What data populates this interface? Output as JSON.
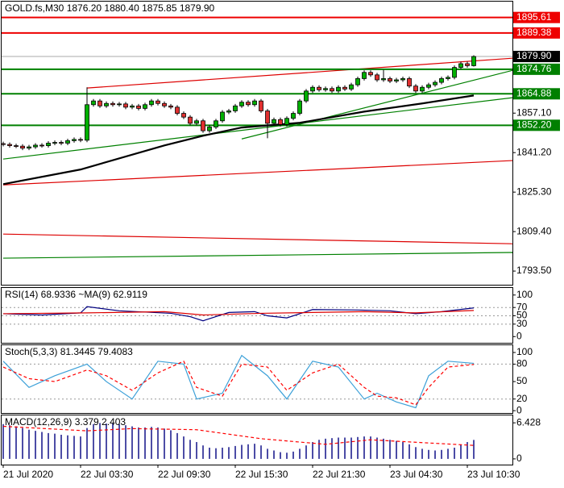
{
  "chart_data": [
    {
      "type": "candlestick",
      "header": "GOLD.fs,M30  1876.20 1880.40 1875.85 1879.90",
      "ylim": [
        1788,
        1902
      ],
      "yticks": [
        {
          "value": 1857.1,
          "label": "1857.10"
        },
        {
          "value": 1841.2,
          "label": "1841.20"
        },
        {
          "value": 1825.3,
          "label": "1825.30"
        },
        {
          "value": 1809.4,
          "label": "1809.40"
        },
        {
          "value": 1793.5,
          "label": "1793.50"
        }
      ],
      "xticks": [
        {
          "value": 0,
          "label": "21 Jul 2020"
        },
        {
          "value": 12,
          "label": "22 Jul 03:30"
        },
        {
          "value": 24,
          "label": "22 Jul 09:30"
        },
        {
          "value": 36,
          "label": "22 Jul 15:30"
        },
        {
          "value": 48,
          "label": "22 Jul 21:30"
        },
        {
          "value": 60,
          "label": "23 Jul 04:30"
        },
        {
          "value": 72,
          "label": "23 Jul 10:30"
        }
      ],
      "up_color": "#00b000",
      "down_color": "#e03030",
      "open": [
        1844.8,
        1844.5,
        1844.0,
        1843.8,
        1843.0,
        1843.5,
        1844.2,
        1844.0,
        1845.0,
        1845.3,
        1845.0,
        1846.0,
        1846.5,
        1846.2,
        1860.5,
        1862.0,
        1860.0,
        1861.0,
        1860.5,
        1860.8,
        1859.5,
        1860.0,
        1859.0,
        1860.5,
        1862.0,
        1861.0,
        1860.0,
        1859.5,
        1857.0,
        1855.5,
        1853.0,
        1854.0,
        1850.0,
        1851.5,
        1854.0,
        1857.5,
        1858.0,
        1860.0,
        1861.5,
        1860.5,
        1862.0,
        1858.0,
        1853.0,
        1854.5,
        1852.5,
        1855.0,
        1857.0,
        1862.0,
        1866.0,
        1867.5,
        1866.5,
        1867.0,
        1866.0,
        1867.5,
        1866.8,
        1868.5,
        1871.0,
        1873.5,
        1872.5,
        1870.5,
        1871.0,
        1870.0,
        1870.5,
        1871.0,
        1868.0,
        1866.0,
        1867.5,
        1868.5,
        1869.5,
        1871.0,
        1871.5,
        1875.5,
        1877.0,
        1876.2
      ],
      "high": [
        1845.6,
        1845.3,
        1844.8,
        1844.6,
        1844.3,
        1845.0,
        1845.0,
        1845.8,
        1846.1,
        1846.1,
        1846.8,
        1847.3,
        1847.3,
        1867.5,
        1862.8,
        1862.8,
        1861.8,
        1861.8,
        1861.6,
        1861.6,
        1860.8,
        1860.8,
        1861.3,
        1862.8,
        1862.8,
        1861.8,
        1860.8,
        1860.3,
        1857.8,
        1856.3,
        1854.8,
        1854.8,
        1852.3,
        1854.8,
        1858.3,
        1858.8,
        1860.8,
        1862.3,
        1862.3,
        1862.8,
        1862.8,
        1858.8,
        1855.3,
        1855.3,
        1855.8,
        1857.8,
        1862.8,
        1866.8,
        1868.3,
        1868.3,
        1867.8,
        1867.8,
        1868.3,
        1868.3,
        1869.3,
        1871.8,
        1874.3,
        1874.3,
        1873.3,
        1874.5,
        1871.8,
        1871.3,
        1871.8,
        1871.8,
        1868.8,
        1868.3,
        1869.3,
        1870.3,
        1871.8,
        1872.3,
        1876.3,
        1877.8,
        1877.8,
        1880.4
      ],
      "low": [
        1843.7,
        1843.2,
        1843.0,
        1842.2,
        1842.2,
        1842.7,
        1843.2,
        1843.2,
        1844.2,
        1844.2,
        1844.2,
        1845.2,
        1845.4,
        1845.4,
        1859.7,
        1859.2,
        1859.2,
        1859.7,
        1859.7,
        1858.7,
        1858.7,
        1858.2,
        1858.2,
        1859.7,
        1860.2,
        1859.2,
        1858.7,
        1856.2,
        1854.7,
        1852.2,
        1852.2,
        1849.2,
        1849.2,
        1850.7,
        1853.2,
        1856.7,
        1857.2,
        1859.2,
        1859.7,
        1859.7,
        1857.2,
        1847.0,
        1852.2,
        1851.7,
        1851.7,
        1854.2,
        1856.2,
        1861.2,
        1865.2,
        1865.7,
        1865.7,
        1865.2,
        1865.2,
        1866.0,
        1866.0,
        1867.7,
        1870.2,
        1871.7,
        1869.7,
        1869.7,
        1869.2,
        1869.2,
        1869.7,
        1867.2,
        1865.2,
        1865.2,
        1866.7,
        1867.7,
        1868.7,
        1870.2,
        1870.7,
        1874.7,
        1875.4,
        1875.85
      ],
      "close": [
        1844.5,
        1844.0,
        1843.8,
        1843.0,
        1843.5,
        1844.2,
        1844.0,
        1845.0,
        1845.3,
        1845.0,
        1846.0,
        1846.5,
        1846.2,
        1860.5,
        1862.0,
        1860.0,
        1861.0,
        1860.5,
        1860.8,
        1859.5,
        1860.0,
        1859.0,
        1860.5,
        1862.0,
        1861.0,
        1860.0,
        1859.5,
        1857.0,
        1855.5,
        1853.0,
        1854.0,
        1850.0,
        1851.5,
        1854.0,
        1857.5,
        1858.0,
        1860.0,
        1861.5,
        1860.5,
        1862.0,
        1858.0,
        1853.0,
        1854.5,
        1852.5,
        1855.0,
        1857.0,
        1862.0,
        1866.0,
        1867.5,
        1866.5,
        1867.0,
        1866.0,
        1867.5,
        1866.8,
        1868.5,
        1871.0,
        1873.5,
        1872.5,
        1870.5,
        1871.0,
        1870.0,
        1870.5,
        1871.0,
        1868.0,
        1866.0,
        1867.5,
        1868.5,
        1869.5,
        1871.0,
        1871.5,
        1875.5,
        1877.0,
        1876.2,
        1879.9
      ],
      "ma": {
        "color": "#000000",
        "x": [
          0,
          12,
          25,
          31,
          37,
          46,
          56,
          65,
          73
        ],
        "values": [
          1828.5,
          1834.4,
          1844.1,
          1848.0,
          1851.3,
          1853.2,
          1857.7,
          1861.0,
          1864.2
        ]
      },
      "trendlines": [
        {
          "color": "#dd0000",
          "x": [
            13,
            79
          ],
          "values": [
            1867.2,
            1879.2
          ]
        },
        {
          "color": "#dd0000",
          "x": [
            0,
            79
          ],
          "values": [
            1828.2,
            1838.0
          ]
        },
        {
          "color": "#dd0000",
          "x": [
            0,
            79
          ],
          "values": [
            1808.4,
            1804.5
          ]
        },
        {
          "color": "#008000",
          "x": [
            0,
            79
          ],
          "values": [
            1798.7,
            1801.0
          ]
        },
        {
          "color": "#008000",
          "x": [
            0,
            79
          ],
          "values": [
            1838.6,
            1863.3
          ]
        },
        {
          "color": "#008000",
          "x": [
            37,
            79
          ],
          "values": [
            1846.7,
            1874.3
          ]
        }
      ],
      "levels": [
        {
          "value": 1895.61,
          "label": "1895.61",
          "color": "#ee0000"
        },
        {
          "value": 1889.38,
          "label": "1889.38",
          "color": "#ee0000"
        },
        {
          "value": 1874.76,
          "label": "1874.76",
          "color": "#008000"
        },
        {
          "value": 1864.88,
          "label": "1864.88",
          "color": "#008000"
        },
        {
          "value": 1852.2,
          "label": "1852.20",
          "color": "#008000"
        }
      ],
      "last_price": {
        "value": 1879.9,
        "label": "1879.90",
        "color": "#000000"
      }
    },
    {
      "type": "line",
      "title": "RSI(14) 68.9336 ~MA(9) 62.9119",
      "ylim": [
        -15,
        117
      ],
      "yticks": [
        100,
        70,
        50,
        30,
        0
      ],
      "levels": [
        70,
        50,
        30
      ],
      "series": [
        {
          "color": "#000080",
          "dash": false,
          "x": [
            0,
            6,
            12,
            13,
            18,
            26,
            29,
            31,
            35,
            39,
            41,
            44,
            48,
            55,
            60,
            64,
            68,
            73
          ],
          "values": [
            55,
            52,
            57,
            72,
            62,
            56,
            48,
            38,
            58,
            60,
            50,
            45,
            65,
            64,
            62,
            55,
            60,
            68.9336
          ]
        },
        {
          "color": "#dd0000",
          "dash": false,
          "x": [
            0,
            13,
            25,
            31,
            40,
            48,
            56,
            64,
            73
          ],
          "values": [
            55,
            57,
            60,
            52,
            56,
            58,
            60,
            57,
            62.9119
          ]
        }
      ]
    },
    {
      "type": "line",
      "title": "Stoch(5,3,3) 81.3445 79.4083",
      "ylim": [
        -4,
        112.5
      ],
      "yticks": [
        100,
        80,
        50,
        20,
        0
      ],
      "levels": [
        80,
        20
      ],
      "series": [
        {
          "color": "#3ca0d8",
          "dash": false,
          "x": [
            0,
            4,
            8,
            13,
            16,
            20,
            24,
            28,
            30,
            34,
            37,
            41,
            44,
            48,
            52,
            56,
            58,
            61,
            64,
            66,
            69,
            73
          ],
          "values": [
            85,
            40,
            60,
            80,
            50,
            20,
            85,
            80,
            20,
            30,
            95,
            60,
            20,
            85,
            75,
            20,
            30,
            15,
            5,
            60,
            85,
            81.3445
          ]
        },
        {
          "color": "#ff0000",
          "dash": true,
          "x": [
            0,
            4,
            8,
            13,
            16,
            20,
            24,
            28,
            30,
            34,
            37,
            41,
            44,
            48,
            52,
            56,
            58,
            61,
            64,
            66,
            69,
            73
          ],
          "values": [
            75,
            55,
            50,
            70,
            60,
            35,
            65,
            85,
            40,
            25,
            80,
            75,
            35,
            65,
            80,
            40,
            25,
            22,
            10,
            40,
            75,
            79.4083
          ]
        }
      ]
    },
    {
      "type": "macd",
      "title": "MACD(12,26,9) 3.379 2.403",
      "ylim": [
        -1.02,
        7.75
      ],
      "yticks": [
        6.428,
        0
      ],
      "color": "#000080",
      "values": [
        6.2,
        6.0,
        5.8,
        5.5,
        5.2,
        5.0,
        4.8,
        4.6,
        4.5,
        4.3,
        4.2,
        4.1,
        4.0,
        5.5,
        6.2,
        6.4,
        6.3,
        6.3,
        6.2,
        6.0,
        5.8,
        5.6,
        5.6,
        5.7,
        5.6,
        5.4,
        5.1,
        4.6,
        4.0,
        3.4,
        3.0,
        2.4,
        2.0,
        1.9,
        2.0,
        2.1,
        2.3,
        2.5,
        2.6,
        2.7,
        2.4,
        1.8,
        1.5,
        1.2,
        1.1,
        1.3,
        1.8,
        2.4,
        3.0,
        3.4,
        3.6,
        3.7,
        3.8,
        3.8,
        3.8,
        3.9,
        4.0,
        4.0,
        3.8,
        3.6,
        3.4,
        3.2,
        3.0,
        2.6,
        2.1,
        1.8,
        1.6,
        1.5,
        1.6,
        1.8,
        2.0,
        2.5,
        3.0,
        3.379
      ],
      "signal": {
        "color": "#ff0000",
        "dash": true,
        "x": [
          0,
          13,
          20,
          30,
          40,
          50,
          57,
          65,
          73
        ],
        "values": [
          5.8,
          5.0,
          5.4,
          5.2,
          3.6,
          2.6,
          3.4,
          2.9,
          2.403
        ]
      }
    }
  ]
}
